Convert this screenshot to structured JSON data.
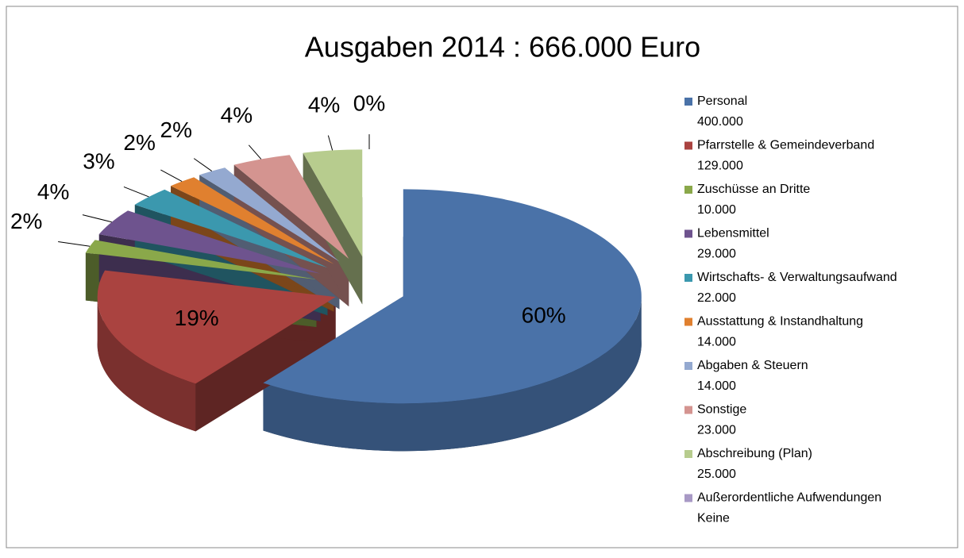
{
  "chart_data": {
    "type": "pie",
    "title": "Ausgaben 2014 :  666.000 Euro",
    "categories": [
      "Personal",
      "Pfarrstelle & Gemeindeverband",
      "Zuschüsse an Dritte",
      "Lebensmittel",
      "Wirtschafts- & Verwaltungsaufwand",
      "Ausstattung & Instandhaltung",
      "Abgaben & Steuern",
      "Sonstige",
      "Abschreibung (Plan)",
      "Außerordentliche Aufwendungen"
    ],
    "legend_amounts": [
      "400.000",
      "129.000",
      "10.000",
      "29.000",
      "22.000",
      "14.000",
      "14.000",
      "23.000",
      "25.000",
      "Keine"
    ],
    "values": [
      60,
      19,
      2,
      4,
      3,
      2,
      2,
      4,
      4,
      0
    ],
    "value_labels": [
      "60%",
      "19%",
      "2%",
      "4%",
      "3%",
      "2%",
      "2%",
      "4%",
      "4%",
      "0%"
    ],
    "colors": [
      "#4a72a8",
      "#aa4340",
      "#8aa84a",
      "#6e538e",
      "#3b98ae",
      "#e0802f",
      "#94a9d0",
      "#d49490",
      "#b7cc8e",
      "#a899c5"
    ],
    "legend": "right"
  }
}
